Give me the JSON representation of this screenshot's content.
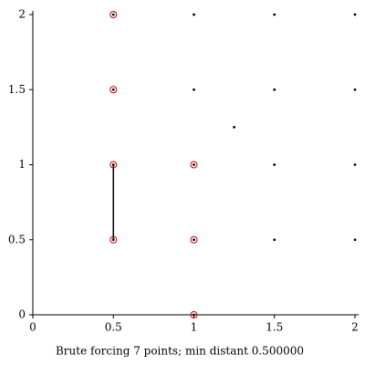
{
  "chart_data": {
    "type": "scatter",
    "xlabel": "Brute forcing 7 points; min distant 0.500000",
    "xlim": [
      0,
      2
    ],
    "ylim": [
      0,
      2
    ],
    "xticks": [
      0,
      0.5,
      1,
      1.5,
      2
    ],
    "yticks": [
      0,
      0.5,
      1,
      1.5,
      2
    ],
    "series": [
      {
        "color": "#000000",
        "marker": "dot",
        "x": [
          0.5,
          1,
          1.5,
          2,
          0.5,
          1,
          1.5,
          2,
          1.25,
          0.5,
          1,
          1.5,
          2,
          0.5,
          1,
          1.5,
          2,
          1
        ],
        "y": [
          2,
          2,
          2,
          2,
          1.5,
          1.5,
          1.5,
          1.5,
          1.25,
          1,
          1,
          1,
          1,
          0.5,
          0.5,
          0.5,
          0.5,
          0
        ]
      },
      {
        "color": "#cc0000",
        "marker": "ring",
        "x": [
          0.5,
          0.5,
          0.5,
          1,
          0.5,
          1,
          1
        ],
        "y": [
          2,
          1.5,
          1,
          1,
          0.5,
          0.5,
          0
        ]
      }
    ],
    "segment": {
      "color": "#000000",
      "x": [
        0.5,
        0.5
      ],
      "y": [
        0.5,
        1
      ]
    }
  }
}
